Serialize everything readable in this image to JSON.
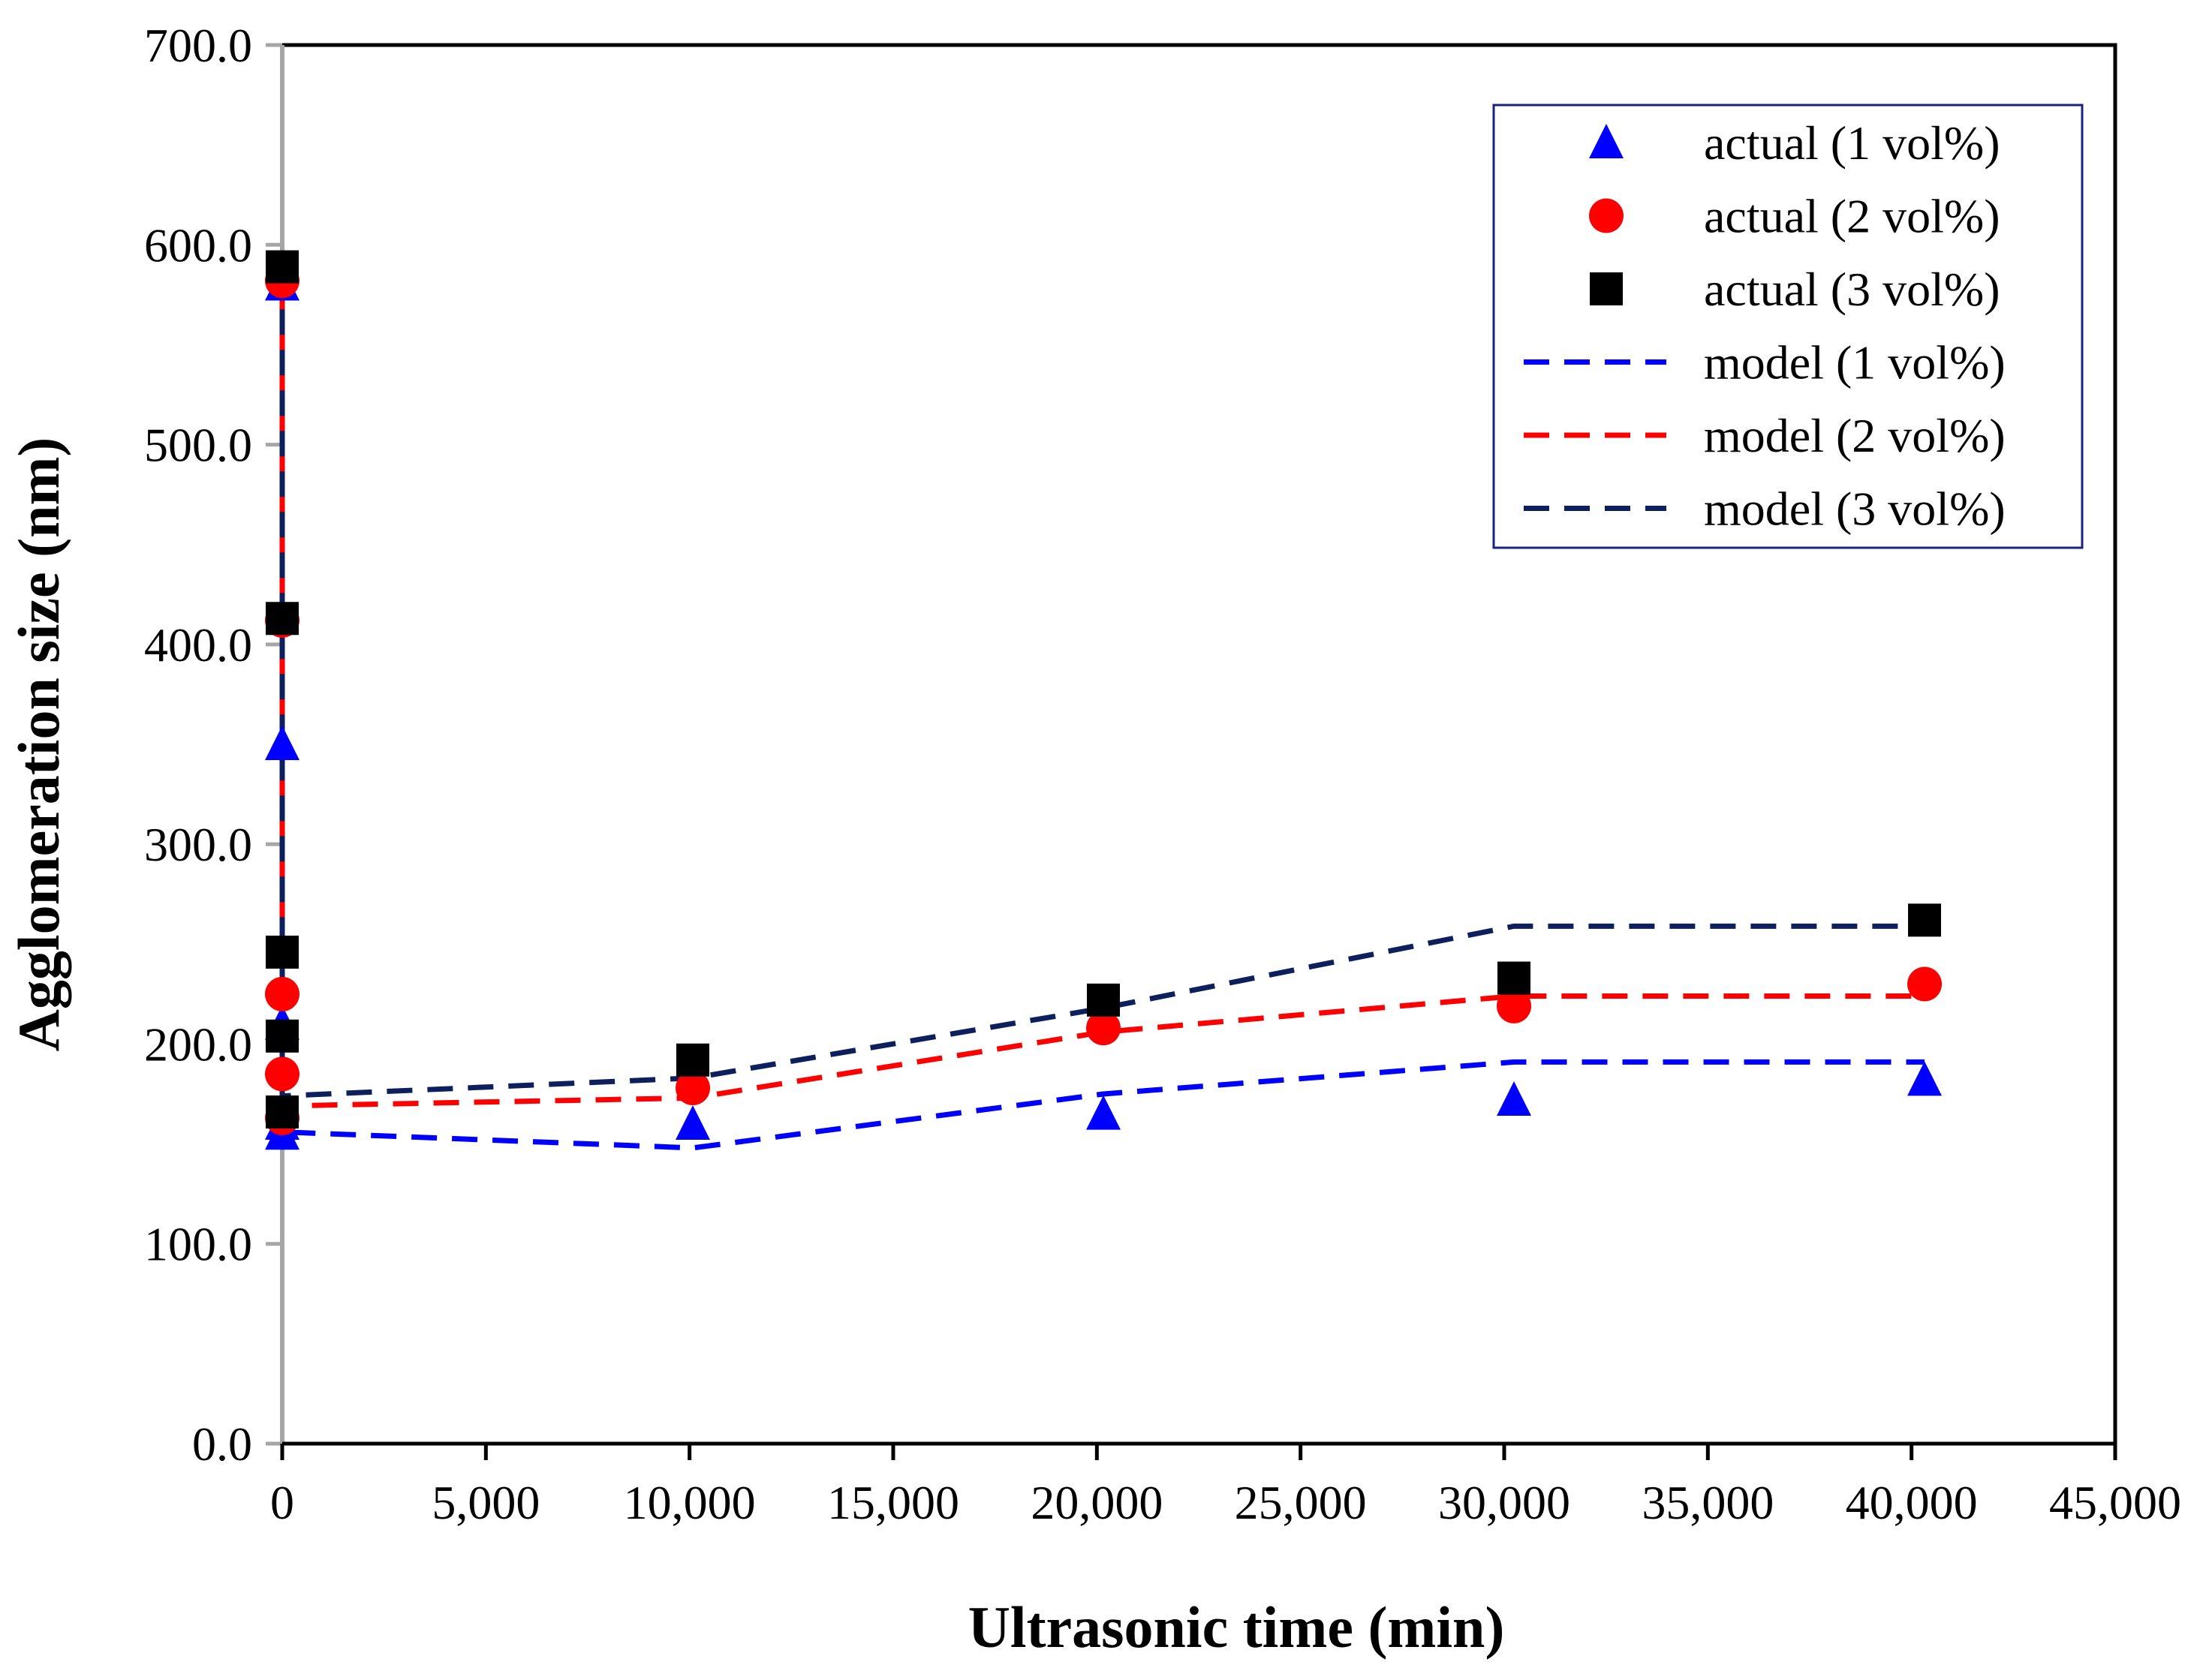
{
  "chart_data": {
    "type": "scatter",
    "title": "",
    "xlabel": "Ultrasonic time (min)",
    "ylabel": "Agglomeration size (nm)",
    "xlim": [
      0,
      45000
    ],
    "ylim": [
      0,
      700
    ],
    "x_ticks": [
      0,
      5000,
      10000,
      15000,
      20000,
      25000,
      30000,
      35000,
      40000,
      45000
    ],
    "x_tick_labels": [
      "0",
      "5,000",
      "10,000",
      "15,000",
      "20,000",
      "25,000",
      "30,000",
      "35,000",
      "40,000",
      "45,000"
    ],
    "y_ticks": [
      0,
      100,
      200,
      300,
      400,
      500,
      600,
      700
    ],
    "y_tick_labels": [
      "0.0",
      "100.0",
      "200.0",
      "300.0",
      "400.0",
      "500.0",
      "600.0",
      "700.0"
    ],
    "grid": false,
    "legend_position": "top-right",
    "series": [
      {
        "name": "actual (1 vol%)",
        "kind": "marker",
        "marker": "triangle",
        "color": "#0000ff",
        "x": [
          0,
          0,
          0,
          0,
          0,
          10080,
          20160,
          30240,
          40320
        ],
        "y": [
          580,
          350,
          210,
          160,
          155,
          160,
          165,
          172,
          182
        ]
      },
      {
        "name": "actual (2 vol%)",
        "kind": "marker",
        "marker": "circle",
        "color": "#ff0000",
        "x": [
          0,
          0,
          0,
          0,
          0,
          10080,
          20160,
          30240,
          40320
        ],
        "y": [
          582,
          412,
          225,
          185,
          163,
          178,
          208,
          219,
          230
        ]
      },
      {
        "name": "actual (3 vol%)",
        "kind": "marker",
        "marker": "square",
        "color": "#000000",
        "x": [
          0,
          0,
          0,
          0,
          0,
          10080,
          20160,
          30240,
          40320
        ],
        "y": [
          589,
          413,
          246,
          204,
          166,
          192,
          222,
          233,
          262
        ]
      },
      {
        "name": "model (1 vol%)",
        "kind": "line",
        "dash": true,
        "color": "#0000ff",
        "x": [
          0,
          0,
          10080,
          20160,
          30240,
          40320
        ],
        "y": [
          578,
          156,
          148,
          175,
          191,
          191
        ]
      },
      {
        "name": "model (2 vol%)",
        "kind": "line",
        "dash": true,
        "color": "#ff0000",
        "x": [
          0,
          0,
          10080,
          20160,
          30240,
          40320
        ],
        "y": [
          580,
          169,
          173,
          206,
          224,
          224
        ]
      },
      {
        "name": "model (3 vol%)",
        "kind": "line",
        "dash": true,
        "color": "#0d1f5c",
        "x": [
          0,
          0,
          10080,
          20160,
          30240,
          40320
        ],
        "y": [
          588,
          174,
          183,
          218,
          259,
          259
        ]
      }
    ]
  }
}
